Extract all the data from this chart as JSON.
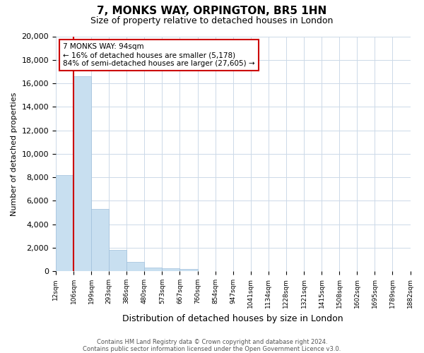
{
  "title": "7, MONKS WAY, ORPINGTON, BR5 1HN",
  "subtitle": "Size of property relative to detached houses in London",
  "xlabel": "Distribution of detached houses by size in London",
  "ylabel": "Number of detached properties",
  "annotation_title": "7 MONKS WAY: 94sqm",
  "annotation_line1": "← 16% of detached houses are smaller (5,178)",
  "annotation_line2": "84% of semi-detached houses are larger (27,605) →",
  "footer_line1": "Contains HM Land Registry data © Crown copyright and database right 2024.",
  "footer_line2": "Contains public sector information licensed under the Open Government Licence v3.0.",
  "bar_color": "#c8dff0",
  "bar_edge_color": "#a0c0dc",
  "marker_color": "#cc0000",
  "annotation_box_edge": "#cc0000",
  "tick_labels": [
    "12sqm",
    "106sqm",
    "199sqm",
    "293sqm",
    "386sqm",
    "480sqm",
    "573sqm",
    "667sqm",
    "760sqm",
    "854sqm",
    "947sqm",
    "1041sqm",
    "1134sqm",
    "1228sqm",
    "1321sqm",
    "1415sqm",
    "1508sqm",
    "1602sqm",
    "1695sqm",
    "1789sqm",
    "1882sqm"
  ],
  "bar_heights": [
    8200,
    16600,
    5300,
    1850,
    780,
    330,
    280,
    190,
    0,
    0,
    0,
    0,
    0,
    0,
    0,
    0,
    0,
    0,
    0,
    0
  ],
  "ylim": [
    0,
    20000
  ],
  "yticks": [
    0,
    2000,
    4000,
    6000,
    8000,
    10000,
    12000,
    14000,
    16000,
    18000,
    20000
  ],
  "n_bars": 20,
  "marker_at_tick": 1,
  "background_color": "#ffffff",
  "grid_color": "#ccd9e8"
}
